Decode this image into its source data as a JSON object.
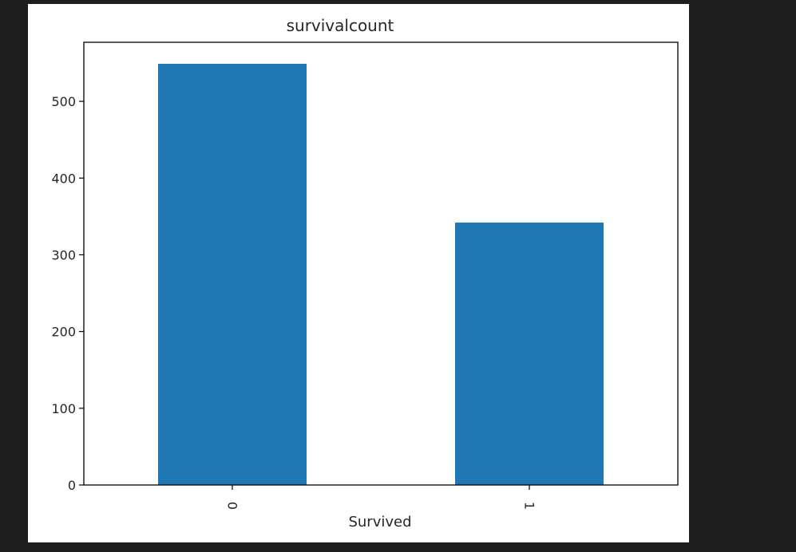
{
  "chart_data": {
    "type": "bar",
    "title": "survivalcount",
    "xlabel": "Survived",
    "ylabel": "",
    "categories": [
      "0",
      "1"
    ],
    "values": [
      549,
      342
    ],
    "ylim": [
      0,
      577
    ],
    "yticks": [
      0,
      100,
      200,
      300,
      400,
      500
    ],
    "ytick_labels": [
      "0",
      "100",
      "200",
      "300",
      "400",
      "500"
    ],
    "bar_color": "#1f77b4",
    "grid": false,
    "legend": "none"
  }
}
